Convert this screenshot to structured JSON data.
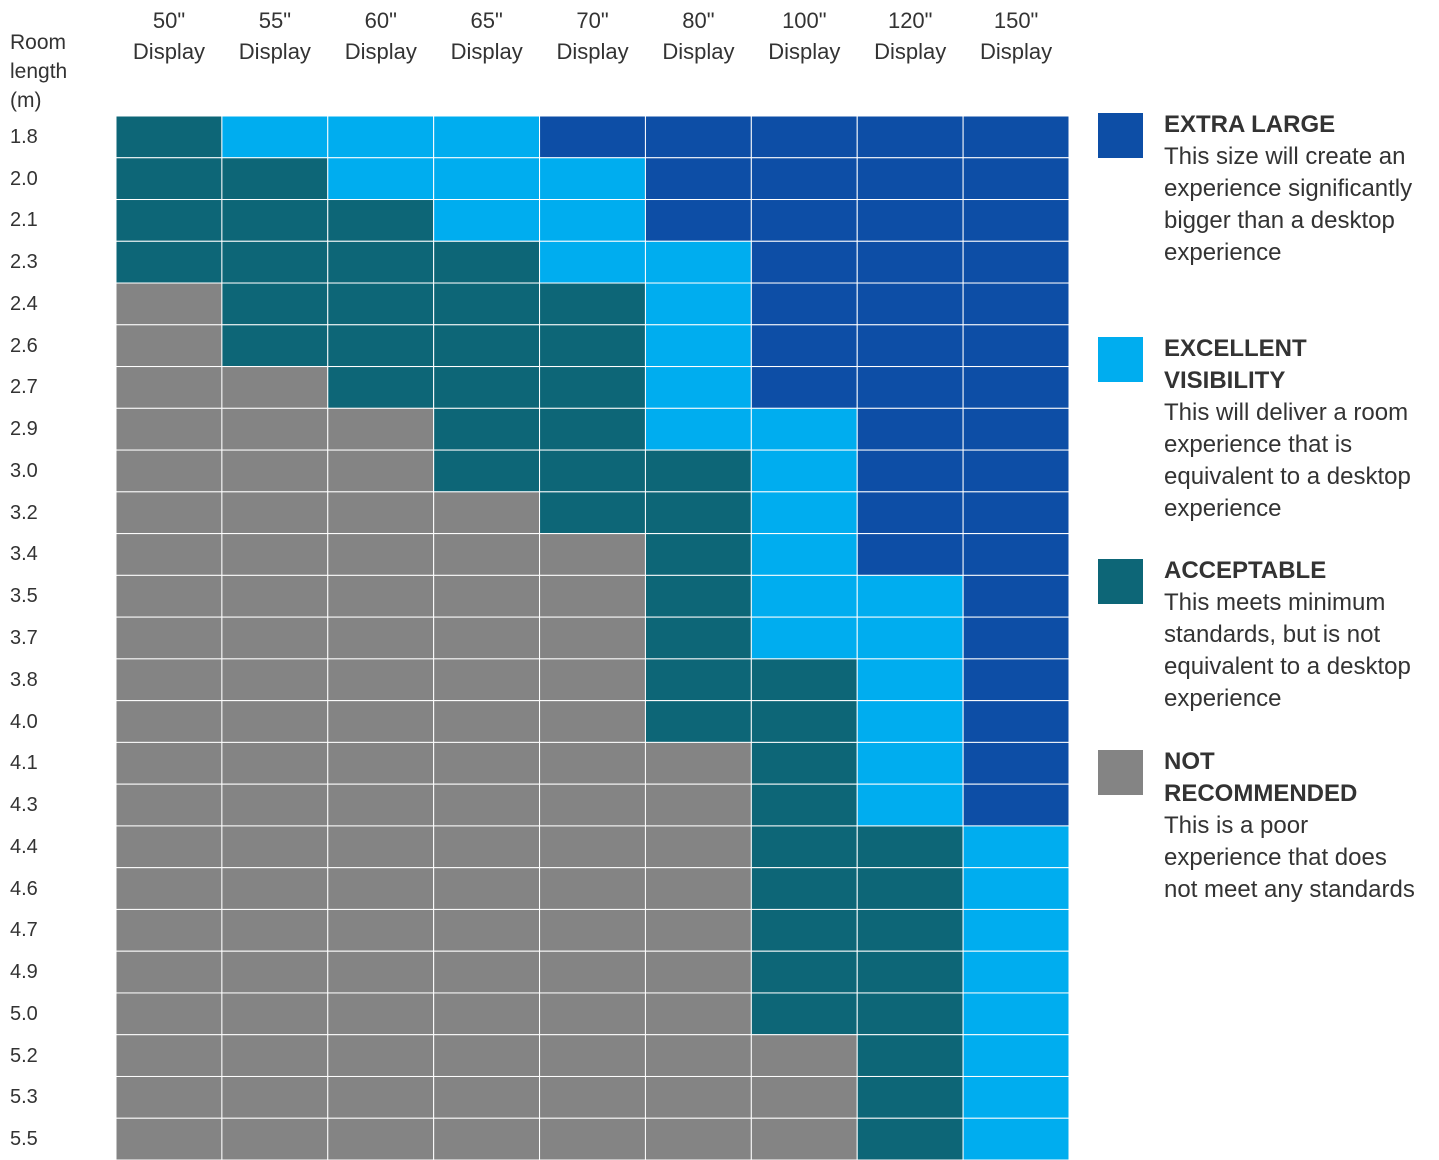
{
  "row_axis_label": "Room length (m)",
  "columns": [
    {
      "size": "50\"",
      "unit": "Display"
    },
    {
      "size": "55\"",
      "unit": "Display"
    },
    {
      "size": "60\"",
      "unit": "Display"
    },
    {
      "size": "65\"",
      "unit": "Display"
    },
    {
      "size": "70\"",
      "unit": "Display"
    },
    {
      "size": "80\"",
      "unit": "Display"
    },
    {
      "size": "100\"",
      "unit": "Display"
    },
    {
      "size": "120\"",
      "unit": "Display"
    },
    {
      "size": "150\"",
      "unit": "Display"
    }
  ],
  "rows": [
    {
      "label": "1.8",
      "cells": [
        2,
        1,
        1,
        1,
        0,
        0,
        0,
        0,
        0
      ]
    },
    {
      "label": "2.0",
      "cells": [
        2,
        2,
        1,
        1,
        1,
        0,
        0,
        0,
        0
      ]
    },
    {
      "label": "2.1",
      "cells": [
        2,
        2,
        2,
        1,
        1,
        0,
        0,
        0,
        0
      ]
    },
    {
      "label": "2.3",
      "cells": [
        2,
        2,
        2,
        2,
        1,
        1,
        0,
        0,
        0
      ]
    },
    {
      "label": "2.4",
      "cells": [
        3,
        2,
        2,
        2,
        2,
        1,
        0,
        0,
        0
      ]
    },
    {
      "label": "2.6",
      "cells": [
        3,
        2,
        2,
        2,
        2,
        1,
        0,
        0,
        0
      ]
    },
    {
      "label": "2.7",
      "cells": [
        3,
        3,
        2,
        2,
        2,
        1,
        0,
        0,
        0
      ]
    },
    {
      "label": "2.9",
      "cells": [
        3,
        3,
        3,
        2,
        2,
        1,
        1,
        0,
        0
      ]
    },
    {
      "label": "3.0",
      "cells": [
        3,
        3,
        3,
        2,
        2,
        2,
        1,
        0,
        0
      ]
    },
    {
      "label": "3.2",
      "cells": [
        3,
        3,
        3,
        3,
        2,
        2,
        1,
        0,
        0
      ]
    },
    {
      "label": "3.4",
      "cells": [
        3,
        3,
        3,
        3,
        3,
        2,
        1,
        0,
        0
      ]
    },
    {
      "label": "3.5",
      "cells": [
        3,
        3,
        3,
        3,
        3,
        2,
        1,
        1,
        0
      ]
    },
    {
      "label": "3.7",
      "cells": [
        3,
        3,
        3,
        3,
        3,
        2,
        1,
        1,
        0
      ]
    },
    {
      "label": "3.8",
      "cells": [
        3,
        3,
        3,
        3,
        3,
        2,
        2,
        1,
        0
      ]
    },
    {
      "label": "4.0",
      "cells": [
        3,
        3,
        3,
        3,
        3,
        2,
        2,
        1,
        0
      ]
    },
    {
      "label": "4.1",
      "cells": [
        3,
        3,
        3,
        3,
        3,
        3,
        2,
        1,
        0
      ]
    },
    {
      "label": "4.3",
      "cells": [
        3,
        3,
        3,
        3,
        3,
        3,
        2,
        1,
        0
      ]
    },
    {
      "label": "4.4",
      "cells": [
        3,
        3,
        3,
        3,
        3,
        3,
        2,
        2,
        1
      ]
    },
    {
      "label": "4.6",
      "cells": [
        3,
        3,
        3,
        3,
        3,
        3,
        2,
        2,
        1
      ]
    },
    {
      "label": "4.7",
      "cells": [
        3,
        3,
        3,
        3,
        3,
        3,
        2,
        2,
        1
      ]
    },
    {
      "label": "4.9",
      "cells": [
        3,
        3,
        3,
        3,
        3,
        3,
        2,
        2,
        1
      ]
    },
    {
      "label": "5.0",
      "cells": [
        3,
        3,
        3,
        3,
        3,
        3,
        2,
        2,
        1
      ]
    },
    {
      "label": "5.2",
      "cells": [
        3,
        3,
        3,
        3,
        3,
        3,
        3,
        2,
        1
      ]
    },
    {
      "label": "5.3",
      "cells": [
        3,
        3,
        3,
        3,
        3,
        3,
        3,
        2,
        1
      ]
    },
    {
      "label": "5.5",
      "cells": [
        3,
        3,
        3,
        3,
        3,
        3,
        3,
        2,
        1
      ]
    }
  ],
  "legend": [
    {
      "title": "EXTRA LARGE",
      "text": "This size will create an experience significantly bigger than a desktop experience",
      "color": "#0d4ea6"
    },
    {
      "title": "EXCELLENT VISIBILITY",
      "text": "This will deliver a room experience that is equivalent to a desktop experience",
      "color": "#00adef"
    },
    {
      "title": "ACCEPTABLE",
      "text": "This meets minimum standards, but is not equivalent to a desktop experience",
      "color": "#0d6677"
    },
    {
      "title": "NOT RECOMMENDED",
      "text": "This is a poor experience that does not meet any standards",
      "color": "#848484"
    }
  ]
}
